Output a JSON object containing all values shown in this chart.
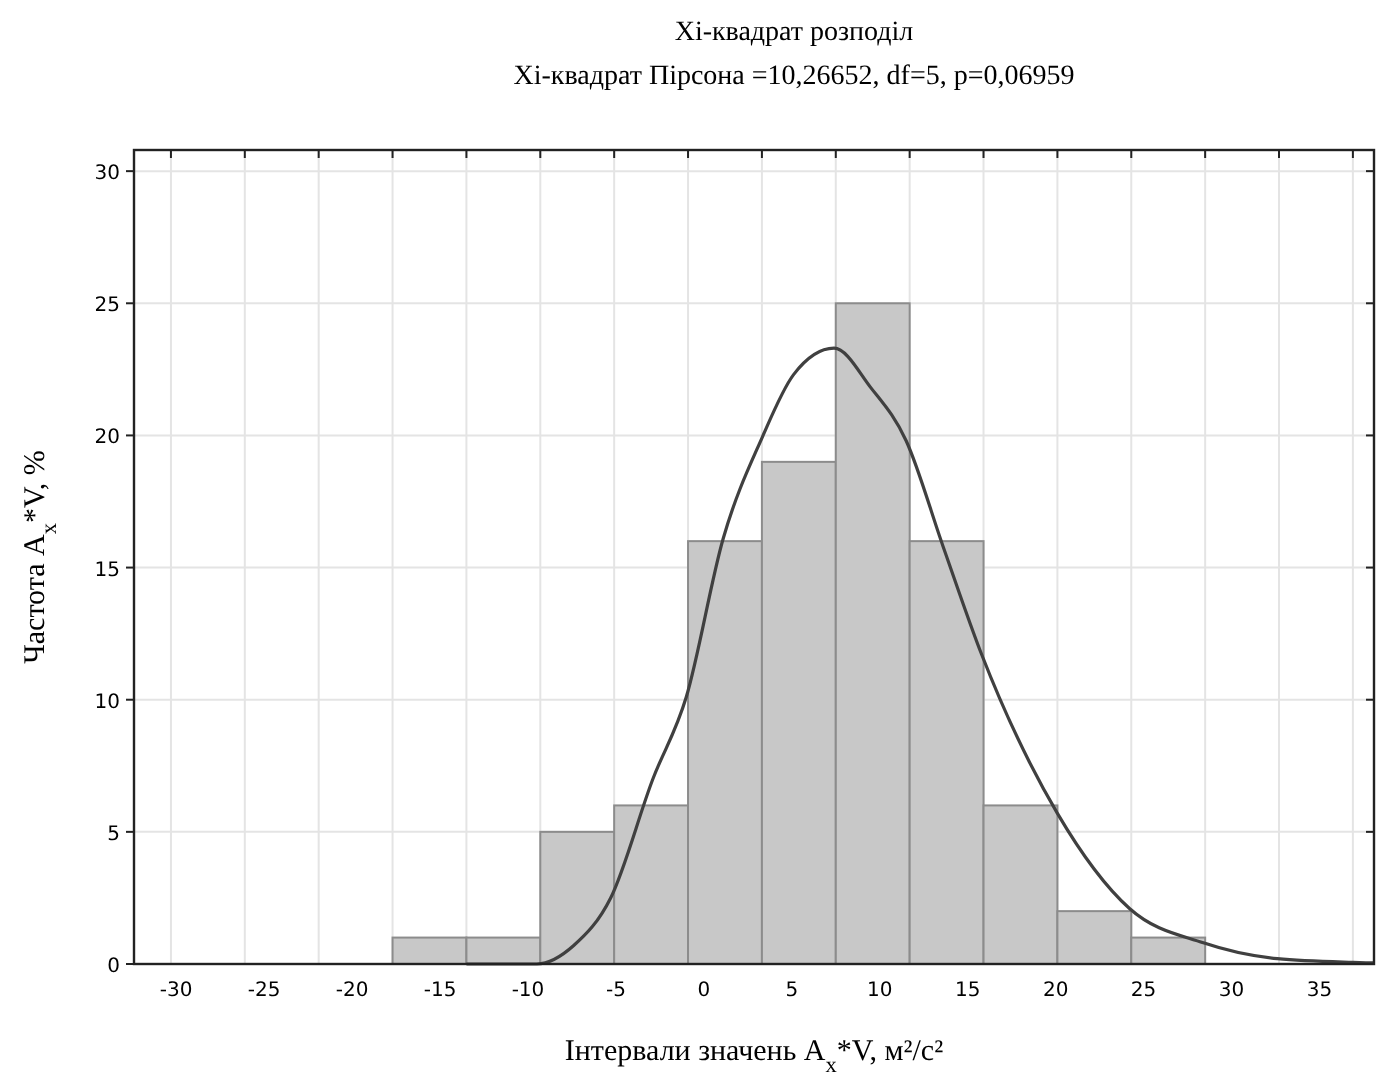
{
  "chart_data": {
    "type": "histogram",
    "title": "Xi-квадрат розподіл",
    "subtitle": "Xi-квадрат Пірсона =10,26652, df=5, p=0,06959",
    "xlabel": "Інтервали значень A$_{x}$*V, м²/с²",
    "ylabel": "Частота A$_{x}$*V, %",
    "bins": [
      -17.7,
      -13.5,
      -9.3,
      -5.1,
      -0.9,
      3.3,
      7.5,
      11.7,
      15.9,
      20.1,
      24.3,
      28.5
    ],
    "values": [
      1,
      1,
      5,
      6,
      16,
      19,
      25,
      16,
      6,
      2,
      1
    ],
    "color": "#c8c8c8",
    "series": [
      {
        "type": "line",
        "color": "#404040",
        "x": [
          -13.5,
          -9.5,
          -7.4,
          -5.3,
          -2.9,
          -1.0,
          1.1,
          3.3,
          5.1,
          7.4,
          9.5,
          11.5,
          13.6,
          15.8,
          20.1,
          24.2,
          28.4,
          32.6,
          36.9,
          38.1
        ],
        "values": [
          0,
          0,
          0.7,
          2.5,
          7.0,
          10.1,
          16.1,
          19.9,
          22.3,
          23.3,
          21.8,
          19.8,
          15.8,
          11.7,
          5.7,
          2.1,
          0.8,
          0.2,
          0.06,
          0.04
        ]
      }
    ],
    "xlim": [
      -32.4,
      38.1
    ],
    "xticks": [
      -30,
      -25,
      -20,
      -15,
      -10,
      -5,
      0,
      5,
      10,
      15,
      20,
      25,
      30,
      35,
      {
        "value": -30.3,
        "label": null
      },
      {
        "value": -26.1,
        "label": null
      },
      {
        "value": -21.9,
        "label": null
      },
      {
        "value": -17.7,
        "label": null
      },
      {
        "value": -13.5,
        "label": null
      },
      {
        "value": -9.3,
        "label": null
      },
      {
        "value": -5.1,
        "label": null
      },
      {
        "value": -0.9,
        "label": null
      },
      {
        "value": 3.3,
        "label": null
      },
      {
        "value": 7.5,
        "label": null
      },
      {
        "value": 11.7,
        "label": null
      },
      {
        "value": 15.9,
        "label": null
      },
      {
        "value": 20.1,
        "label": null
      },
      {
        "value": 24.3,
        "label": null
      },
      {
        "value": 28.5,
        "label": null
      },
      {
        "value": 32.7,
        "label": null
      },
      {
        "value": 36.9,
        "label": null
      }
    ],
    "ylim": [
      0,
      30.8
    ],
    "yticks": [
      0,
      5,
      10,
      15,
      20,
      25,
      30
    ],
    "grid": true
  }
}
